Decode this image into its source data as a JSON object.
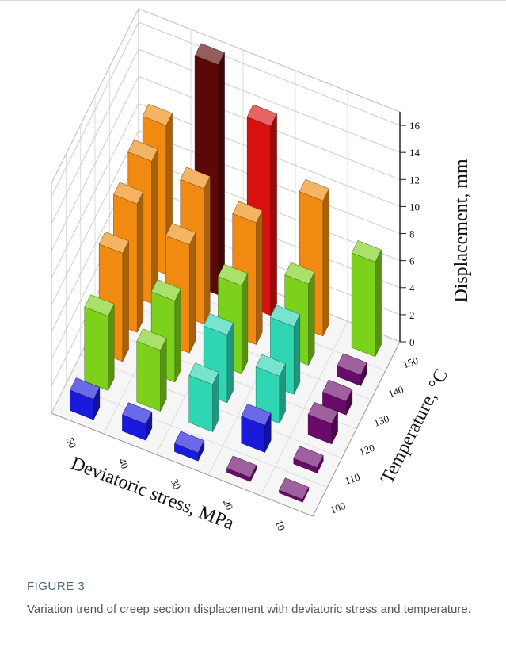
{
  "figure_label": "FIGURE 3",
  "caption": "Variation trend of creep section displacement with deviatoric stress and temperature.",
  "chart_data": {
    "type": "bar3d",
    "x_label": "Deviatoric stress, MPa",
    "y_label": "Temperature, °C",
    "z_label": "Displacement, mm",
    "categories": [
      "50",
      "40",
      "30",
      "20",
      "10"
    ],
    "y_categories": [
      "100",
      "110",
      "120",
      "130",
      "140",
      "150"
    ],
    "values": [
      [
        1.5,
        1.2,
        0.6,
        0.3,
        0.2
      ],
      [
        5.5,
        4.5,
        3.5,
        2.0,
        0.4
      ],
      [
        8.0,
        6.0,
        5.0,
        3.5,
        1.5
      ],
      [
        9.5,
        8.0,
        6.5,
        5.0,
        1.0
      ],
      [
        10.5,
        10.0,
        9.0,
        6.0,
        0.8
      ],
      [
        11.0,
        17.0,
        14.0,
        10.0,
        7.0
      ]
    ],
    "colors": [
      [
        "#1a1adc",
        "#1a1adc",
        "#1a1adc",
        "#6a0a6a",
        "#6a0a6a"
      ],
      [
        "#7cd11a",
        "#7cd11a",
        "#2fd6b4",
        "#1a1adc",
        "#6a0a6a"
      ],
      [
        "#f08a10",
        "#7cd11a",
        "#2fd6b4",
        "#2fd6b4",
        "#6a0a6a"
      ],
      [
        "#f08a10",
        "#f08a10",
        "#7cd11a",
        "#2fd6b4",
        "#6a0a6a"
      ],
      [
        "#f08a10",
        "#f08a10",
        "#f08a10",
        "#7cd11a",
        "#6a0a6a"
      ],
      [
        "#f08a10",
        "#5a0808",
        "#d81010",
        "#f08a10",
        "#7cd11a"
      ]
    ],
    "zlim": [
      0,
      17
    ],
    "zticks": [
      0,
      2,
      4,
      6,
      8,
      10,
      12,
      14,
      16
    ],
    "grid": true
  }
}
